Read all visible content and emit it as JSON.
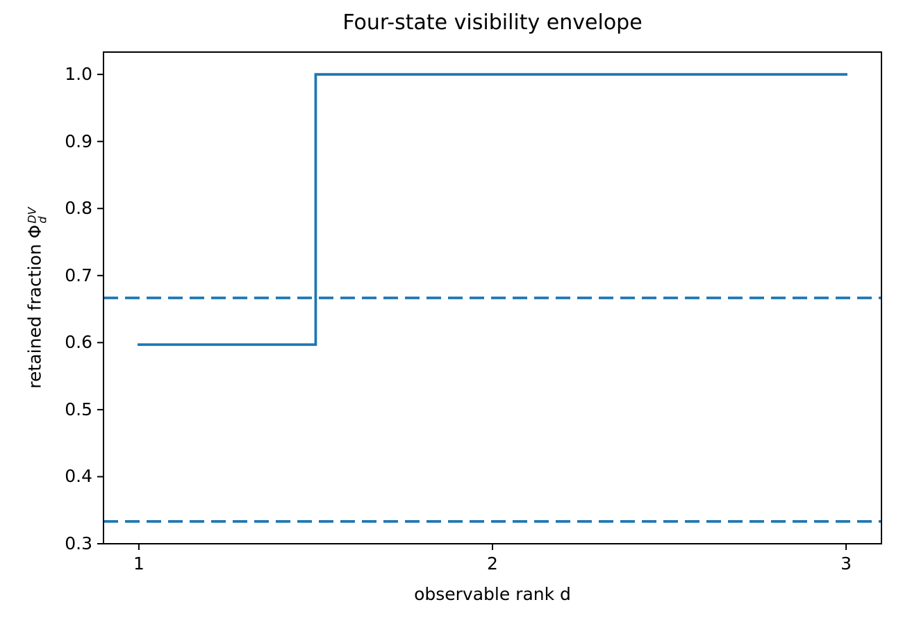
{
  "title": "Four-state visibility envelope",
  "axes": {
    "xlabel": "observable rank d",
    "ylabel_prefix": "retained fraction ",
    "ylabel_symbol": "Φ",
    "ylabel_sup": "DV",
    "ylabel_sub": "d"
  },
  "chart_data": {
    "type": "line",
    "title": "Four-state visibility envelope",
    "xlabel": "observable rank d",
    "ylabel": "retained fraction Φ_d^DV",
    "xlim": [
      0.9,
      3.1
    ],
    "ylim": [
      0.3,
      1.0333
    ],
    "xticks": [
      1,
      2,
      3
    ],
    "xtick_labels": [
      "1",
      "2",
      "3"
    ],
    "yticks": [
      0.3,
      0.4,
      0.5,
      0.6,
      0.7,
      0.8,
      0.9,
      1.0
    ],
    "ytick_labels": [
      "0.3",
      "0.4",
      "0.5",
      "0.6",
      "0.7",
      "0.8",
      "0.9",
      "1.0"
    ],
    "grid": false,
    "legend": false,
    "line_color": "#1f77b4",
    "spine_color": "#000000",
    "series": [
      {
        "name": "retained-fraction-envelope",
        "style": "solid",
        "drawstyle": "steps-mid",
        "x": [
          1,
          2,
          3
        ],
        "y": [
          0.597,
          1.0,
          1.0
        ]
      }
    ],
    "hlines": [
      {
        "name": "two-thirds-bound",
        "y": 0.6667,
        "style": "dashed"
      },
      {
        "name": "one-third-bound",
        "y": 0.3333,
        "style": "dashed"
      }
    ]
  }
}
